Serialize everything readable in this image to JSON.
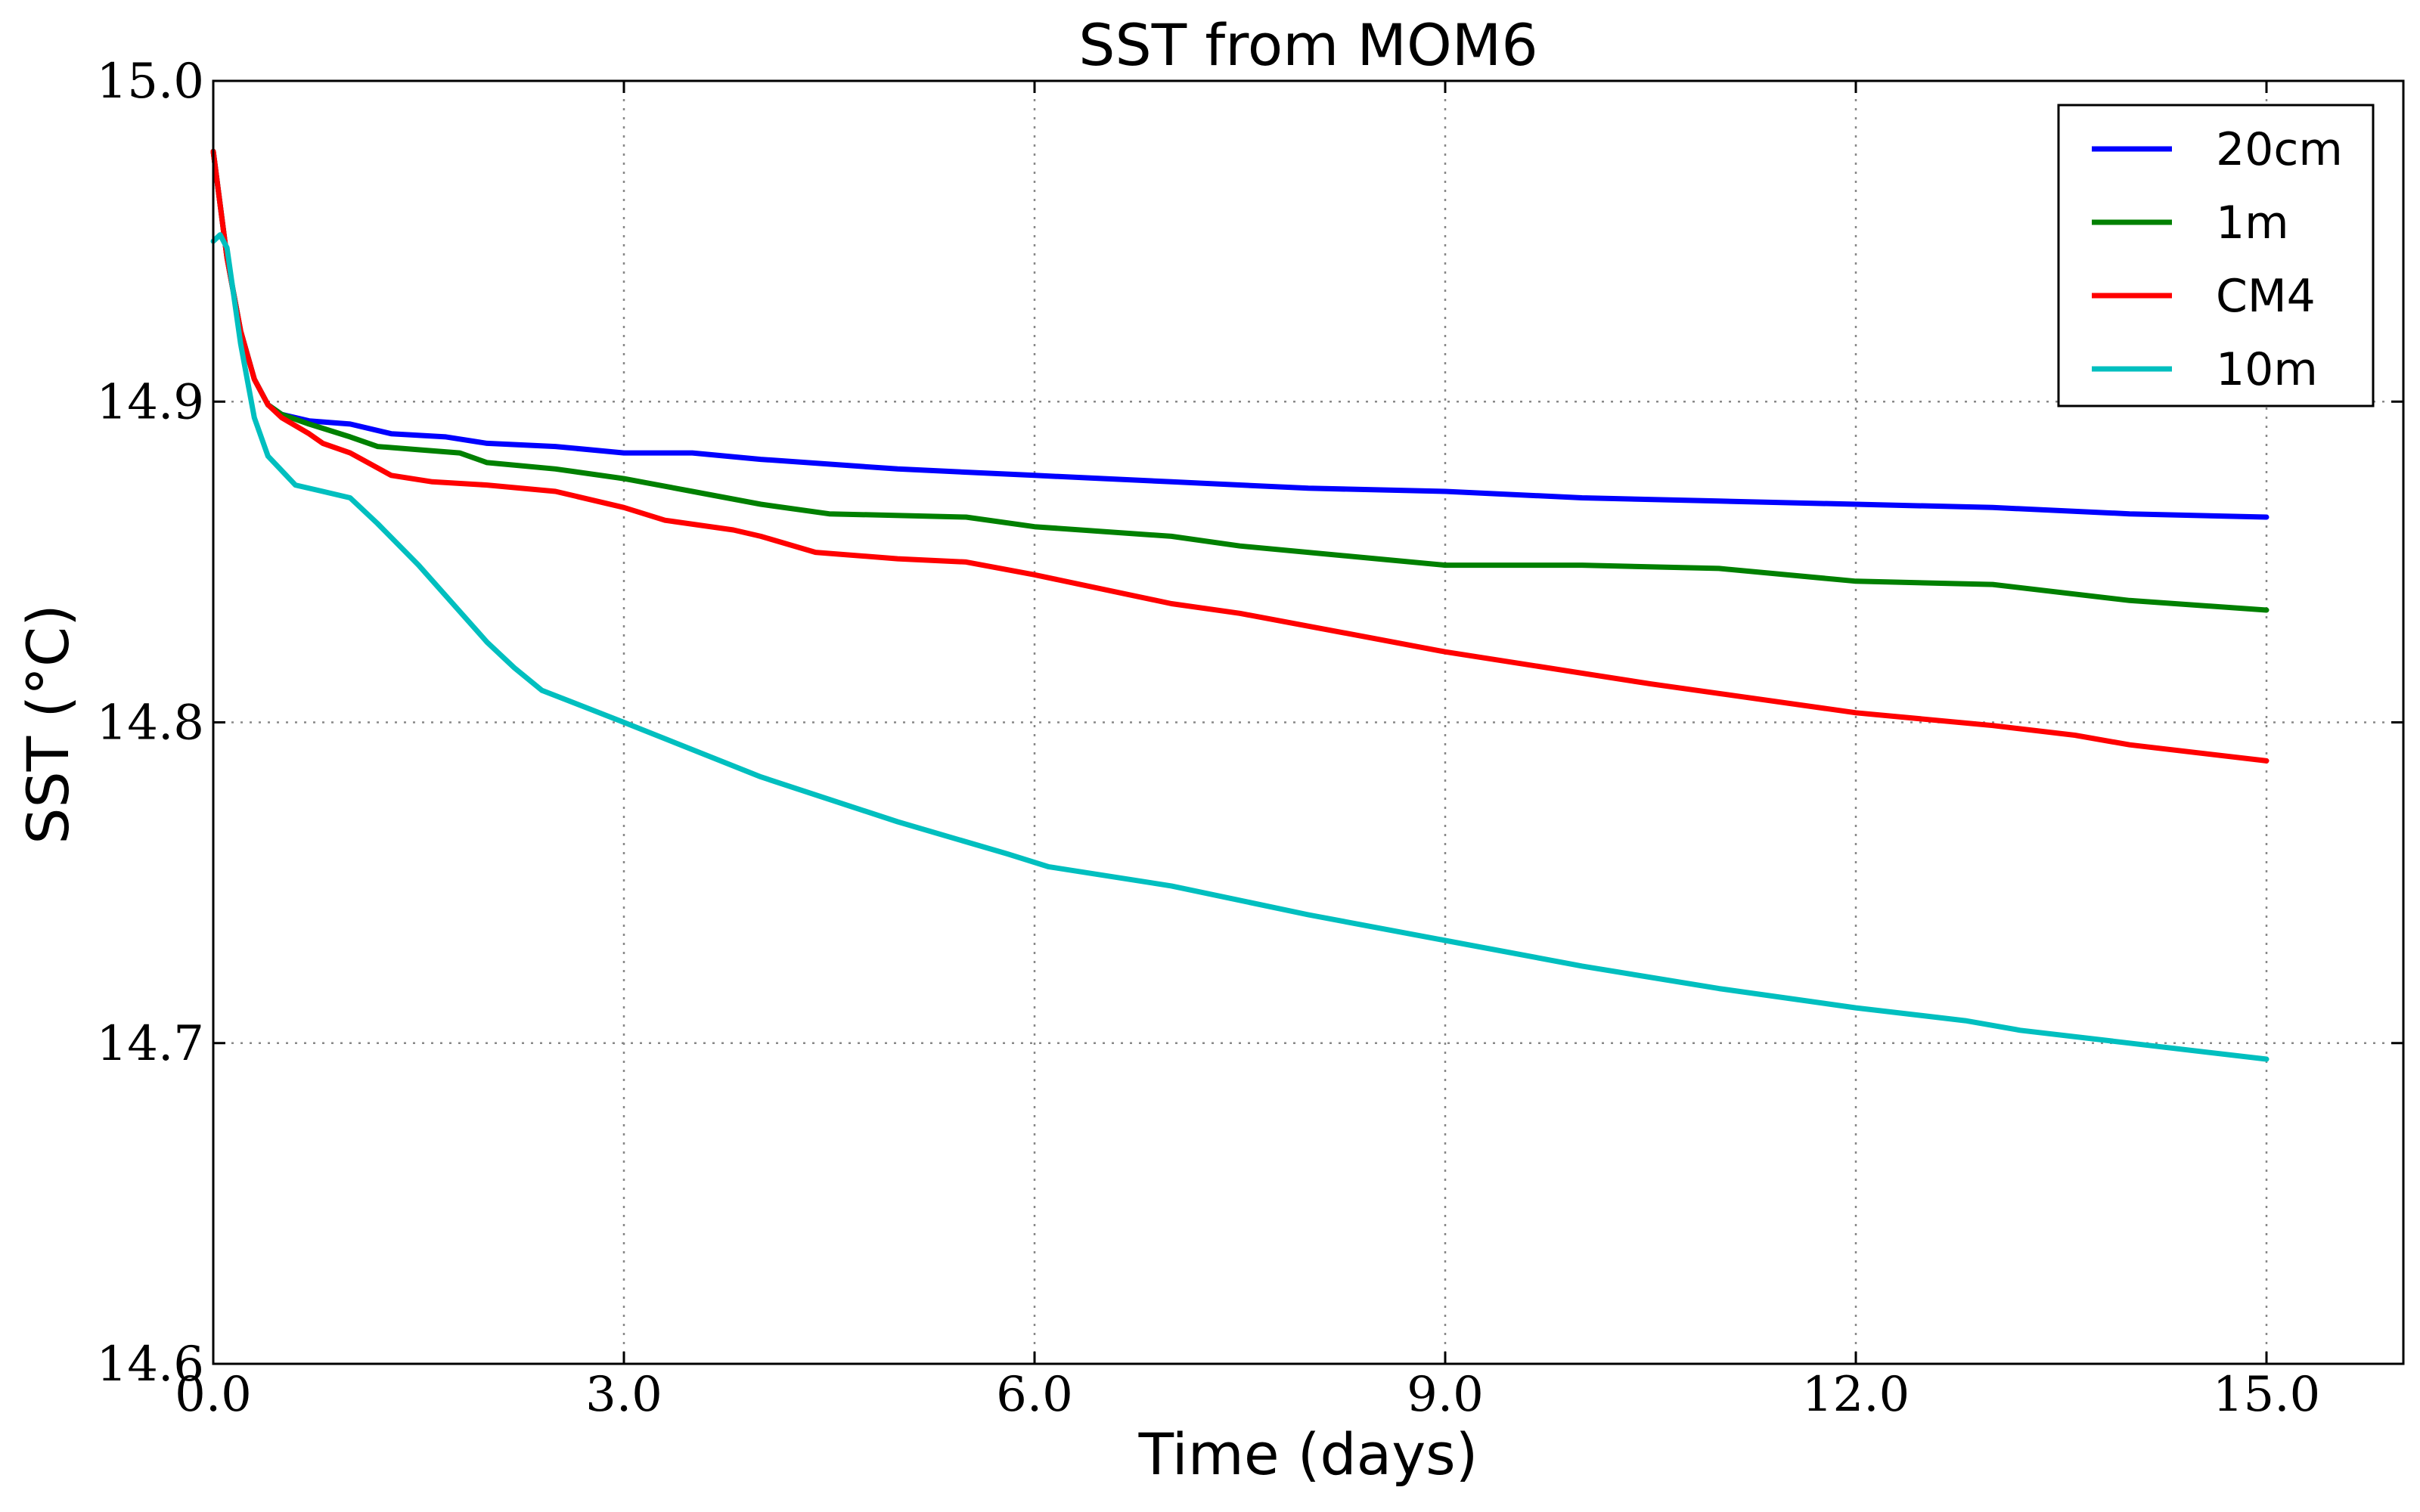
{
  "chart_data": {
    "type": "line",
    "title": "SST from MOM6",
    "xlabel": "Time (days)",
    "ylabel": "SST (°C)",
    "xlim": [
      0,
      16
    ],
    "ylim": [
      14.6,
      15.0
    ],
    "xticks": [
      0,
      3,
      6,
      9,
      12,
      15
    ],
    "xtick_labels": [
      "0.0",
      "3.0",
      "6.0",
      "9.0",
      "12.0",
      "15.0"
    ],
    "yticks": [
      14.6,
      14.7,
      14.8,
      14.9,
      15.0
    ],
    "ytick_labels": [
      "14.6",
      "14.7",
      "14.8",
      "14.9",
      "15.0"
    ],
    "grid": true,
    "legend_position": "top-right",
    "series": [
      {
        "name": "20cm",
        "color": "#0000ff",
        "x": [
          0,
          0.1,
          0.2,
          0.3,
          0.4,
          0.5,
          0.7,
          1.0,
          1.3,
          1.7,
          2.0,
          2.5,
          3.0,
          3.5,
          4.0,
          5.0,
          6.0,
          7.0,
          8.0,
          9.0,
          10.0,
          11.0,
          12.0,
          13.0,
          14.0,
          15.0
        ],
        "y": [
          14.978,
          14.945,
          14.922,
          14.907,
          14.899,
          14.896,
          14.894,
          14.893,
          14.89,
          14.889,
          14.887,
          14.886,
          14.884,
          14.884,
          14.882,
          14.879,
          14.877,
          14.875,
          14.873,
          14.872,
          14.87,
          14.869,
          14.868,
          14.867,
          14.865,
          14.864
        ]
      },
      {
        "name": "1m",
        "color": "#008000",
        "x": [
          0,
          0.1,
          0.2,
          0.3,
          0.4,
          0.5,
          0.7,
          1.0,
          1.2,
          1.5,
          1.8,
          2.0,
          2.5,
          3.0,
          3.5,
          4.0,
          4.5,
          5.5,
          6.0,
          7.0,
          7.5,
          8.5,
          9.0,
          10.0,
          11.0,
          12.0,
          13.0,
          14.0,
          15.0
        ],
        "y": [
          14.978,
          14.945,
          14.922,
          14.907,
          14.899,
          14.896,
          14.893,
          14.889,
          14.886,
          14.885,
          14.884,
          14.881,
          14.879,
          14.876,
          14.872,
          14.868,
          14.865,
          14.864,
          14.861,
          14.858,
          14.855,
          14.851,
          14.849,
          14.849,
          14.848,
          14.844,
          14.843,
          14.838,
          14.835
        ]
      },
      {
        "name": "CM4",
        "color": "#ff0000",
        "x": [
          0,
          0.1,
          0.2,
          0.3,
          0.4,
          0.5,
          0.7,
          0.8,
          1.0,
          1.3,
          1.6,
          2.0,
          2.5,
          3.0,
          3.3,
          3.8,
          4.0,
          4.4,
          5.0,
          5.5,
          6.0,
          7.0,
          7.5,
          8.5,
          9.0,
          10.5,
          11.0,
          12.0,
          13.0,
          13.6,
          14.0,
          15.0
        ],
        "y": [
          14.978,
          14.945,
          14.922,
          14.907,
          14.899,
          14.895,
          14.89,
          14.887,
          14.884,
          14.877,
          14.875,
          14.874,
          14.872,
          14.867,
          14.863,
          14.86,
          14.858,
          14.853,
          14.851,
          14.85,
          14.846,
          14.837,
          14.834,
          14.826,
          14.822,
          14.812,
          14.809,
          14.803,
          14.799,
          14.796,
          14.793,
          14.788
        ]
      },
      {
        "name": "10m",
        "color": "#00bfbf",
        "x": [
          0,
          0.05,
          0.1,
          0.2,
          0.3,
          0.4,
          0.6,
          0.8,
          1.0,
          1.2,
          1.5,
          2.0,
          2.2,
          2.4,
          3.0,
          4.0,
          5.0,
          5.8,
          6.1,
          7.0,
          8.0,
          9.0,
          10.0,
          11.0,
          12.0,
          12.8,
          13.2,
          14.0,
          15.0
        ],
        "y": [
          14.95,
          14.952,
          14.948,
          14.918,
          14.895,
          14.883,
          14.874,
          14.872,
          14.87,
          14.862,
          14.849,
          14.825,
          14.817,
          14.81,
          14.8,
          14.783,
          14.769,
          14.759,
          14.755,
          14.749,
          14.74,
          14.732,
          14.724,
          14.717,
          14.711,
          14.707,
          14.704,
          14.7,
          14.695
        ]
      }
    ]
  }
}
